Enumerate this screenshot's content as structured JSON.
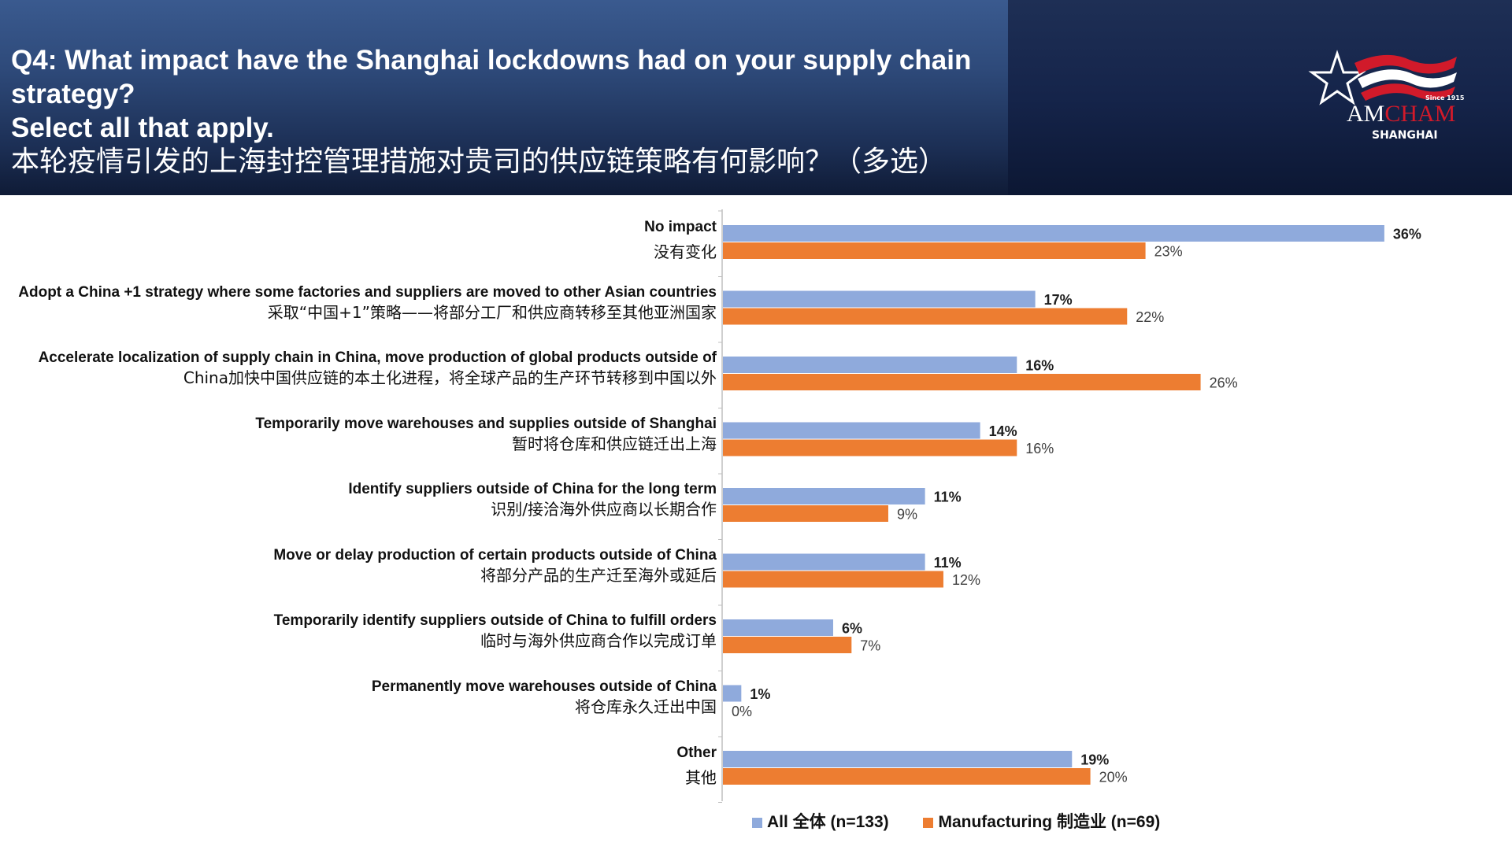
{
  "header": {
    "title_en_line1": "Q4: What impact have the Shanghai lockdowns had on your supply chain strategy?",
    "title_en_line2": "Select all that apply.",
    "title_zh": "本轮疫情引发的上海封控管理措施对贵司的供应链策略有何影响？（多选）"
  },
  "logo": {
    "since": "Since 1915",
    "name_am": "AM",
    "name_cham": "CHAM",
    "city": "SHANGHAI"
  },
  "colors": {
    "all": "#8faadc",
    "manufacturing": "#ed7d31",
    "header_dark": "#1c2f55",
    "logo_red": "#d11a2a"
  },
  "chart_data": {
    "type": "bar",
    "orientation": "horizontal",
    "categories": [
      {
        "en": "No impact",
        "zh": "没有变化"
      },
      {
        "en": "Adopt a China +1 strategy where some factories and suppliers are moved to other Asian countries",
        "zh": "采取“中国+1”策略——将部分工厂和供应商转移至其他亚洲国家"
      },
      {
        "en": "Accelerate localization of supply chain in China, move production of global products outside of",
        "zh": "China加快中国供应链的本土化进程，将全球产品的生产环节转移到中国以外"
      },
      {
        "en": "Temporarily move warehouses and supplies outside of Shanghai",
        "zh": "暂时将仓库和供应链迁出上海"
      },
      {
        "en": "Identify suppliers outside of China for the long term",
        "zh": "识别/接洽海外供应商以长期合作"
      },
      {
        "en": "Move or delay production of certain products outside of China",
        "zh": "将部分产品的生产迁至海外或延后"
      },
      {
        "en": "Temporarily identify suppliers outside of China to fulfill orders",
        "zh": "临时与海外供应商合作以完成订单"
      },
      {
        "en": "Permanently move warehouses outside of China",
        "zh": "将仓库永久迁出中国"
      },
      {
        "en": "Other",
        "zh": "其他"
      }
    ],
    "series": [
      {
        "name": "All 全体 (n=133)",
        "color": "#8faadc",
        "values": [
          36,
          17,
          16,
          14,
          11,
          11,
          6,
          1,
          19
        ],
        "labels": [
          "36%",
          "17%",
          "16%",
          "14%",
          "11%",
          "11%",
          "6%",
          "1%",
          "19%"
        ]
      },
      {
        "name": "Manufacturing 制造业 (n=69)",
        "color": "#ed7d31",
        "values": [
          23,
          22,
          26,
          16,
          9,
          12,
          7,
          0,
          20
        ],
        "labels": [
          "23%",
          "22%",
          "26%",
          "16%",
          "9%",
          "12%",
          "7%",
          "0%",
          "20%"
        ]
      }
    ],
    "unit": "%",
    "legend_position": "bottom",
    "xlim": [
      0,
      38
    ]
  }
}
